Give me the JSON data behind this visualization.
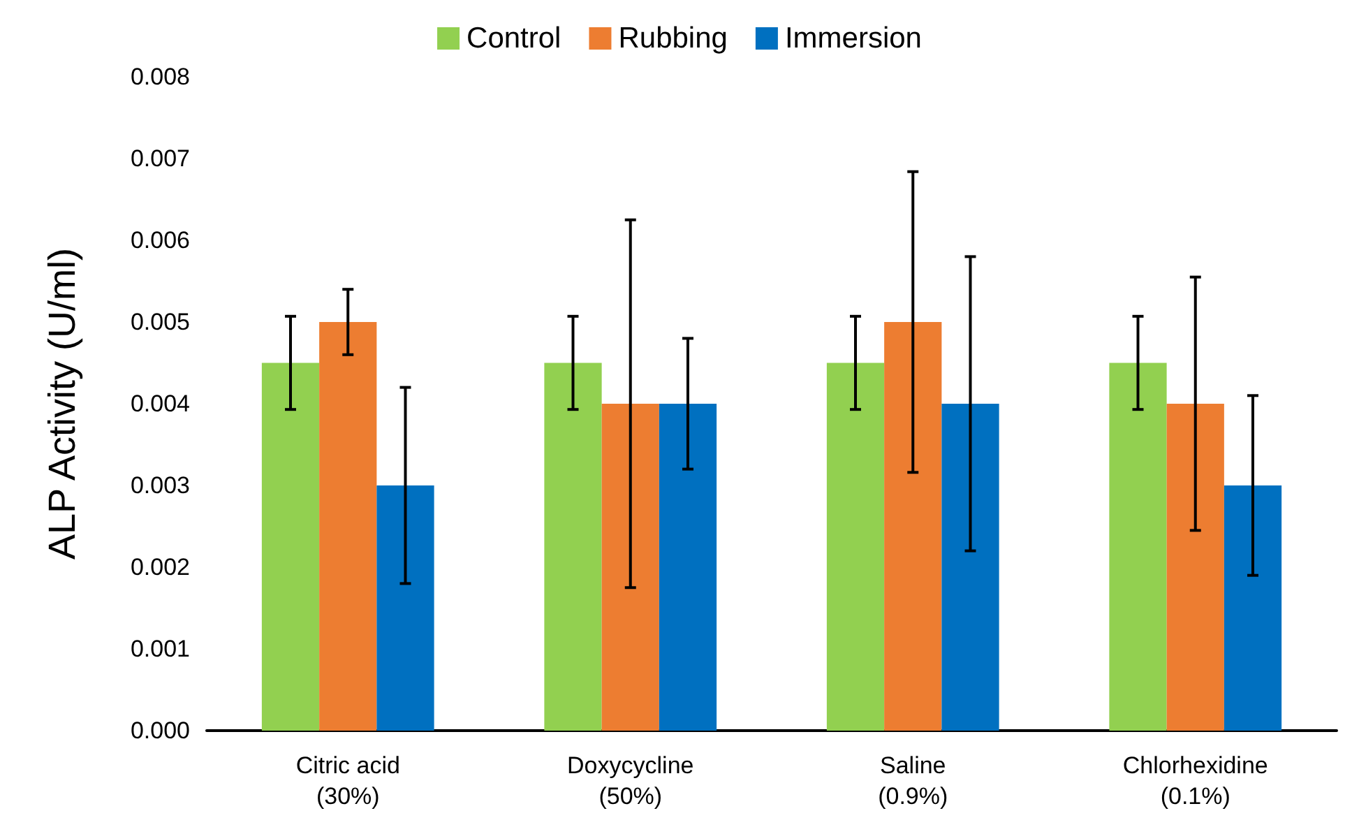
{
  "chart_data": {
    "type": "bar",
    "ylabel": "ALP Activity (U/ml)",
    "categories": [
      "Citric acid\n(30%)",
      "Doxycycline\n(50%)",
      "Saline\n(0.9%)",
      "Chlorhexidine\n(0.1%)"
    ],
    "series": [
      {
        "name": "Control",
        "color": "#92d050",
        "values": [
          0.0045,
          0.0045,
          0.0045,
          0.0045
        ],
        "errors": [
          0.00057,
          0.00057,
          0.00057,
          0.00057
        ]
      },
      {
        "name": "Rubbing",
        "color": "#ed7d31",
        "values": [
          0.005,
          0.004,
          0.005,
          0.004
        ],
        "errors": [
          0.0004,
          0.00225,
          0.00184,
          0.00155
        ]
      },
      {
        "name": "Immersion",
        "color": "#0070c0",
        "values": [
          0.003,
          0.004,
          0.004,
          0.003
        ],
        "errors": [
          0.0012,
          0.0008,
          0.0018,
          0.0011
        ]
      }
    ],
    "ylim": [
      0,
      0.008
    ],
    "yticks": [
      {
        "value": 0,
        "label": "0.000"
      },
      {
        "value": 0.001,
        "label": "0.001"
      },
      {
        "value": 0.002,
        "label": "0.002"
      },
      {
        "value": 0.003,
        "label": "0.003"
      },
      {
        "value": 0.004,
        "label": "0.004"
      },
      {
        "value": 0.005,
        "label": "0.005"
      },
      {
        "value": 0.006,
        "label": "0.006"
      },
      {
        "value": 0.007,
        "label": "0.007"
      },
      {
        "value": 0.008,
        "label": "0.008"
      }
    ],
    "grid": false,
    "legend": "top"
  }
}
